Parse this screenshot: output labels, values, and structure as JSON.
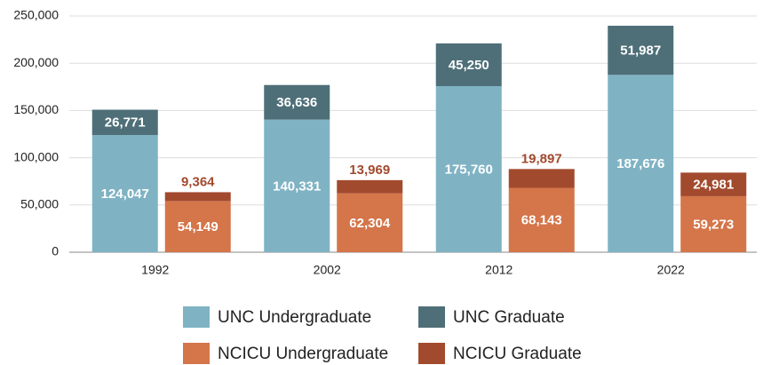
{
  "chart_data": {
    "type": "stacked_grouped_bar",
    "categories": [
      "1992",
      "2002",
      "2012",
      "2022"
    ],
    "bars": [
      {
        "series": [
          {
            "name": "UNC Undergraduate",
            "color": "#7fb3c4",
            "values": [
              124047,
              140331,
              175760,
              187676
            ],
            "value_labels": [
              "124,047",
              "140,331",
              "175,760",
              "187,676"
            ]
          },
          {
            "name": "UNC Graduate",
            "color": "#4e6f78",
            "values": [
              26771,
              36636,
              45250,
              51987
            ],
            "value_labels": [
              "26,771",
              "36,636",
              "45,250",
              "51,987"
            ]
          }
        ]
      },
      {
        "series": [
          {
            "name": "NCICU Undergraduate",
            "color": "#d4754a",
            "values": [
              54149,
              62304,
              68143,
              59273
            ],
            "value_labels": [
              "54,149",
              "62,304",
              "68,143",
              "59,273"
            ]
          },
          {
            "name": "NCICU Graduate",
            "color": "#a24a2e",
            "values": [
              9364,
              13969,
              19897,
              24981
            ],
            "value_labels": [
              "9,364",
              "13,969",
              "19,897",
              "24,981"
            ]
          }
        ]
      }
    ],
    "ylim": [
      0,
      250000
    ],
    "yticks": [
      0,
      {
        "value": 50000,
        "label": "50,000"
      },
      {
        "value": 100000,
        "label": "100,000"
      },
      {
        "value": 150000,
        "label": "150,000"
      },
      {
        "value": 200000,
        "label": "200,000"
      },
      {
        "value": 250000,
        "label": "250,000"
      }
    ],
    "grid": true
  }
}
